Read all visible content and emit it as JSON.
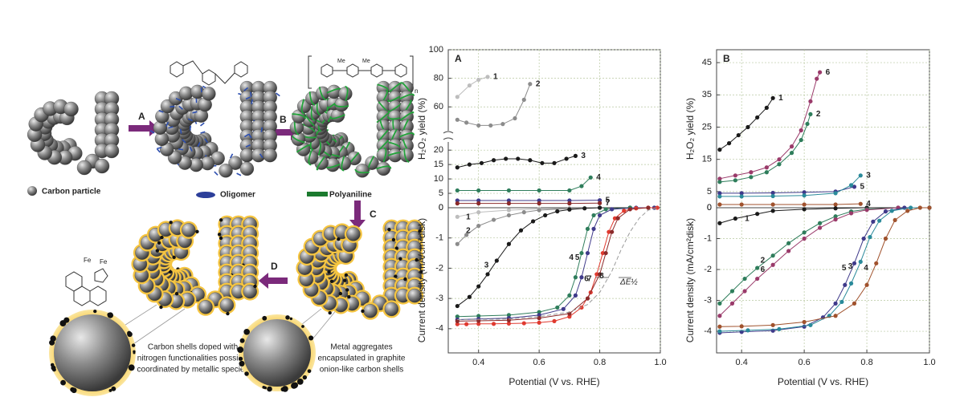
{
  "schematic": {
    "steps": [
      "A",
      "B",
      "C",
      "D"
    ],
    "legend": [
      "Carbon particle",
      "Oligomer",
      "Polyaniline"
    ],
    "captions": [
      [
        "Carbon shells doped with",
        "nitrogen functionalities possibly",
        "coordinated by metallic species"
      ],
      [
        "Metal aggregates",
        "encapsulated in graphite",
        "onion-like carbon shells"
      ]
    ],
    "structure_labels": [
      "Fe",
      "Fe",
      "Me",
      "Me",
      "n"
    ]
  },
  "chart_data": [
    {
      "type": "line",
      "title": "A",
      "xlim": [
        0.3,
        1.0
      ],
      "ylim": [
        45,
        100
      ],
      "yticks": [
        60,
        80,
        100
      ],
      "grid": true,
      "series": [
        {
          "name": "1",
          "color": "#bdbdbd",
          "x": [
            0.33,
            0.37,
            0.4,
            0.43
          ],
          "values": [
            67,
            75,
            79,
            81
          ]
        },
        {
          "name": "2",
          "color": "#8c8c8c",
          "x": [
            0.33,
            0.36,
            0.4,
            0.44,
            0.48,
            0.52,
            0.55,
            0.57
          ],
          "values": [
            51,
            49,
            47,
            47,
            48,
            52,
            65,
            76
          ]
        }
      ]
    },
    {
      "type": "line",
      "ylabel": "H₂O₂ yield (%)",
      "xlim": [
        0.3,
        1.0
      ],
      "ylim": [
        0,
        22
      ],
      "yticks": [
        0,
        5,
        10,
        15,
        20
      ],
      "grid": true,
      "series": [
        {
          "name": "3",
          "color": "#1a1a1a",
          "x": [
            0.33,
            0.37,
            0.41,
            0.45,
            0.49,
            0.53,
            0.57,
            0.61,
            0.65,
            0.69,
            0.72
          ],
          "values": [
            14,
            15,
            15.5,
            16.5,
            17,
            17,
            16.5,
            15.5,
            15.5,
            17,
            18
          ]
        },
        {
          "name": "4",
          "color": "#2e7d5b",
          "x": [
            0.33,
            0.4,
            0.5,
            0.6,
            0.7,
            0.74,
            0.77
          ],
          "values": [
            6,
            6,
            6,
            6,
            6,
            7.5,
            10.5
          ]
        },
        {
          "name": "5",
          "color": "#3f3a8a",
          "x": [
            0.33,
            0.4,
            0.5,
            0.6,
            0.7,
            0.8
          ],
          "values": [
            2.5,
            2.5,
            2.5,
            2.5,
            2.5,
            2.6
          ]
        },
        {
          "name": "7",
          "color": "#8b2a2a",
          "x": [
            0.33,
            0.4,
            0.5,
            0.6,
            0.7,
            0.8
          ],
          "values": [
            1.5,
            1.5,
            1.5,
            1.5,
            1.5,
            1.6
          ]
        }
      ]
    },
    {
      "type": "line",
      "ylabel": "Current density (mA/cm²disk)",
      "xlabel": "Potential (V vs. RHE)",
      "annotation": "ΔE½",
      "xlim": [
        0.3,
        1.0
      ],
      "xticks": [
        0.4,
        0.6,
        0.8,
        {
          "value": 1,
          "label": "1.0"
        }
      ],
      "ylim": [
        -4.8,
        0
      ],
      "yticks": [
        -4,
        -3,
        -2,
        -1,
        0
      ],
      "grid": true,
      "series": [
        {
          "name": "1",
          "color": "#bdbdbd",
          "x": [
            0.33,
            0.4,
            0.5,
            0.6,
            0.7,
            0.8,
            0.9
          ],
          "values": [
            -0.3,
            -0.15,
            -0.08,
            -0.04,
            -0.02,
            0,
            0
          ]
        },
        {
          "name": "2",
          "color": "#8c8c8c",
          "x": [
            0.33,
            0.36,
            0.4,
            0.45,
            0.5,
            0.55,
            0.6,
            0.7,
            0.8,
            0.9
          ],
          "values": [
            -1.2,
            -0.9,
            -0.6,
            -0.4,
            -0.25,
            -0.15,
            -0.08,
            -0.03,
            0,
            0
          ]
        },
        {
          "name": "3",
          "color": "#1a1a1a",
          "x": [
            0.33,
            0.37,
            0.4,
            0.43,
            0.46,
            0.5,
            0.54,
            0.58,
            0.62,
            0.66,
            0.7,
            0.75,
            0.8,
            0.9
          ],
          "values": [
            -3.25,
            -2.95,
            -2.6,
            -2.2,
            -1.75,
            -1.2,
            -0.75,
            -0.45,
            -0.25,
            -0.12,
            -0.06,
            -0.02,
            0,
            0
          ]
        },
        {
          "name": "4",
          "color": "#2e7d5b",
          "x": [
            0.33,
            0.4,
            0.5,
            0.6,
            0.66,
            0.7,
            0.72,
            0.74,
            0.76,
            0.78,
            0.82,
            0.9,
            0.98
          ],
          "values": [
            -3.6,
            -3.58,
            -3.55,
            -3.45,
            -3.3,
            -2.9,
            -2.3,
            -1.5,
            -0.7,
            -0.25,
            -0.05,
            0,
            0
          ]
        },
        {
          "name": "5",
          "color": "#3f3a8a",
          "x": [
            0.33,
            0.4,
            0.5,
            0.6,
            0.68,
            0.72,
            0.74,
            0.76,
            0.78,
            0.8,
            0.84,
            0.92,
            0.98
          ],
          "values": [
            -3.7,
            -3.68,
            -3.65,
            -3.55,
            -3.35,
            -2.9,
            -2.3,
            -1.5,
            -0.7,
            -0.25,
            -0.05,
            0,
            0
          ]
        },
        {
          "name": "6",
          "color": "#e03a2f",
          "x": [
            0.33,
            0.36,
            0.4,
            0.45,
            0.5,
            0.55,
            0.6,
            0.65,
            0.7,
            0.74,
            0.77,
            0.79,
            0.81,
            0.83,
            0.85,
            0.88,
            0.92,
            0.96,
            0.99
          ],
          "values": [
            -3.85,
            -3.85,
            -3.84,
            -3.84,
            -3.83,
            -3.82,
            -3.8,
            -3.75,
            -3.6,
            -3.3,
            -2.8,
            -2.2,
            -1.5,
            -0.8,
            -0.35,
            -0.1,
            -0.02,
            0,
            0
          ]
        },
        {
          "name": "7",
          "color": "#8b2a2a",
          "x": [
            0.33,
            0.4,
            0.5,
            0.6,
            0.7,
            0.76,
            0.8,
            0.82,
            0.84,
            0.86,
            0.9,
            0.96
          ],
          "values": [
            -3.75,
            -3.74,
            -3.72,
            -3.65,
            -3.5,
            -3.0,
            -2.2,
            -1.5,
            -0.8,
            -0.35,
            -0.05,
            0
          ]
        },
        {
          "name": "8",
          "color": "#9a9a9a",
          "style": "dashed",
          "markers": false,
          "x": [
            0.33,
            0.5,
            0.6,
            0.7,
            0.76,
            0.8,
            0.84,
            0.87,
            0.9,
            0.93,
            0.96,
            0.99
          ],
          "values": [
            -3.7,
            -3.68,
            -3.6,
            -3.45,
            -3.2,
            -2.8,
            -2.1,
            -1.4,
            -0.8,
            -0.35,
            -0.08,
            0
          ]
        }
      ]
    },
    {
      "type": "line",
      "title": "B",
      "ylabel": "H₂O₂ yield (%)",
      "xlim": [
        0.32,
        1.0
      ],
      "ylim": [
        0,
        49
      ],
      "yticks": [
        0,
        5,
        15,
        25,
        35,
        45
      ],
      "grid": true,
      "series": [
        {
          "name": "1",
          "color": "#1a1a1a",
          "x": [
            0.33,
            0.36,
            0.39,
            0.42,
            0.45,
            0.48,
            0.5
          ],
          "values": [
            18,
            20,
            22.5,
            25,
            28,
            31,
            34
          ]
        },
        {
          "name": "6",
          "color": "#9a3a6a",
          "x": [
            0.33,
            0.38,
            0.43,
            0.48,
            0.52,
            0.56,
            0.59,
            0.62,
            0.64,
            0.65
          ],
          "values": [
            9,
            10,
            11,
            12.5,
            15,
            19,
            24,
            33,
            40,
            42
          ]
        },
        {
          "name": "2",
          "color": "#2e7d5b",
          "x": [
            0.33,
            0.38,
            0.43,
            0.48,
            0.52,
            0.56,
            0.59,
            0.61,
            0.62
          ],
          "values": [
            8,
            8.5,
            9.5,
            11,
            13.5,
            17,
            21,
            26,
            29
          ]
        },
        {
          "name": "5",
          "color": "#3f3a8a",
          "x": [
            0.33,
            0.4,
            0.5,
            0.6,
            0.7,
            0.76
          ],
          "values": [
            4.5,
            4.5,
            4.6,
            4.8,
            5,
            6.5
          ]
        },
        {
          "name": "3",
          "color": "#2a8a9a",
          "x": [
            0.33,
            0.4,
            0.5,
            0.6,
            0.7,
            0.75,
            0.78
          ],
          "values": [
            3.5,
            3.5,
            3.6,
            3.8,
            4.5,
            7,
            10
          ]
        },
        {
          "name": "4",
          "color": "#a0522d",
          "x": [
            0.33,
            0.4,
            0.5,
            0.6,
            0.7,
            0.78
          ],
          "values": [
            1,
            1,
            1,
            1,
            1,
            1.2
          ]
        }
      ]
    },
    {
      "type": "line",
      "ylabel": "Current density (mA/cm²disk)",
      "xlabel": "Potential (V vs. RHE)",
      "xlim": [
        0.32,
        1.0
      ],
      "xticks": [
        0.4,
        0.6,
        0.8,
        {
          "value": 1,
          "label": "1.0"
        }
      ],
      "ylim": [
        -4.7,
        0
      ],
      "yticks": [
        -4,
        -3,
        -2,
        -1,
        0
      ],
      "grid": true,
      "series": [
        {
          "name": "1",
          "color": "#1a1a1a",
          "x": [
            0.33,
            0.38,
            0.45,
            0.5,
            0.6,
            0.7,
            0.8,
            0.9
          ],
          "values": [
            -0.5,
            -0.35,
            -0.2,
            -0.1,
            -0.05,
            -0.02,
            0,
            0
          ]
        },
        {
          "name": "2",
          "color": "#2e7d5b",
          "x": [
            0.33,
            0.37,
            0.41,
            0.45,
            0.5,
            0.55,
            0.6,
            0.65,
            0.7,
            0.75,
            0.8,
            0.9
          ],
          "values": [
            -3.1,
            -2.7,
            -2.3,
            -1.95,
            -1.55,
            -1.15,
            -0.8,
            -0.5,
            -0.28,
            -0.12,
            -0.05,
            0
          ]
        },
        {
          "name": "6",
          "color": "#9a3a6a",
          "x": [
            0.33,
            0.37,
            0.41,
            0.45,
            0.5,
            0.55,
            0.6,
            0.65,
            0.7,
            0.75,
            0.8,
            0.9
          ],
          "values": [
            -3.5,
            -3.1,
            -2.7,
            -2.3,
            -1.85,
            -1.4,
            -1.0,
            -0.65,
            -0.38,
            -0.18,
            -0.07,
            0
          ]
        },
        {
          "name": "5",
          "color": "#3f3a8a",
          "x": [
            0.33,
            0.4,
            0.5,
            0.6,
            0.66,
            0.7,
            0.73,
            0.76,
            0.79,
            0.82,
            0.86,
            0.92,
            1.0
          ],
          "values": [
            -4.05,
            -4.02,
            -3.98,
            -3.85,
            -3.55,
            -3.1,
            -2.5,
            -1.8,
            -1.0,
            -0.45,
            -0.12,
            0,
            0
          ]
        },
        {
          "name": "3",
          "color": "#2a8a9a",
          "x": [
            0.33,
            0.42,
            0.52,
            0.62,
            0.68,
            0.72,
            0.75,
            0.78,
            0.81,
            0.84,
            0.88,
            0.94,
            1.0
          ],
          "values": [
            -4.0,
            -3.97,
            -3.93,
            -3.8,
            -3.5,
            -3.05,
            -2.45,
            -1.75,
            -0.95,
            -0.42,
            -0.1,
            0,
            0
          ]
        },
        {
          "name": "4",
          "color": "#a0522d",
          "x": [
            0.33,
            0.4,
            0.5,
            0.6,
            0.7,
            0.76,
            0.8,
            0.83,
            0.86,
            0.89,
            0.93,
            0.97,
            1.0
          ],
          "values": [
            -3.85,
            -3.84,
            -3.8,
            -3.7,
            -3.5,
            -3.1,
            -2.5,
            -1.8,
            -1.0,
            -0.4,
            -0.1,
            0,
            0
          ]
        }
      ]
    }
  ]
}
